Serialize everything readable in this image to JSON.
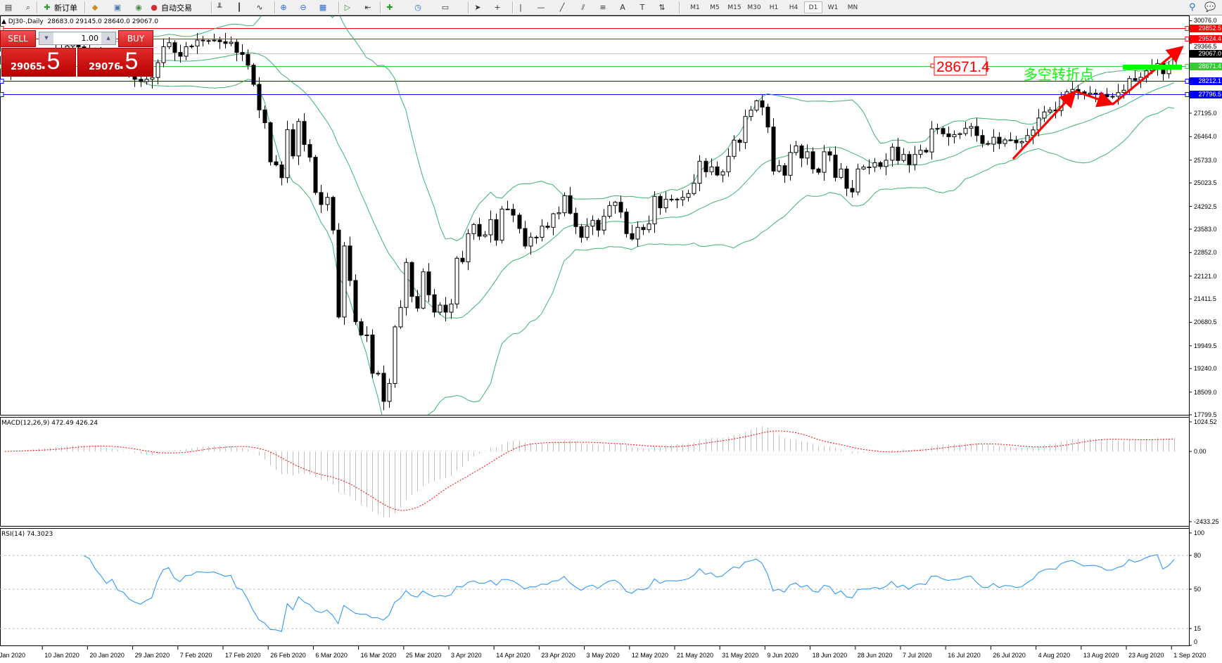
{
  "toolbar": {
    "items": [
      {
        "icon": "chart-window-icon",
        "label": ""
      },
      {
        "icon": "zoom-chart-icon",
        "label": ""
      },
      {
        "icon": "new-order-icon",
        "label": "新订单"
      },
      {
        "icon": "metaeditor-icon",
        "label": ""
      },
      {
        "icon": "market-watch-icon",
        "label": ""
      },
      {
        "icon": "signals-icon",
        "label": ""
      },
      {
        "icon": "auto-trading-icon",
        "label": "自动交易"
      },
      {
        "icon": "bar-chart-icon",
        "label": ""
      },
      {
        "icon": "candlestick-icon",
        "label": ""
      },
      {
        "icon": "line-chart-icon",
        "label": ""
      },
      {
        "icon": "zoom-in-icon",
        "label": ""
      },
      {
        "icon": "zoom-out-icon",
        "label": ""
      },
      {
        "icon": "tile-windows-icon",
        "label": ""
      },
      {
        "icon": "auto-scroll-icon",
        "label": ""
      },
      {
        "icon": "chart-shift-icon",
        "label": ""
      },
      {
        "icon": "indicators-icon",
        "label": ""
      },
      {
        "icon": "periods-icon",
        "label": ""
      },
      {
        "icon": "templates-icon",
        "label": ""
      },
      {
        "icon": "cursor-icon",
        "label": ""
      },
      {
        "icon": "crosshair-icon",
        "label": ""
      },
      {
        "icon": "vertical-line-icon",
        "label": ""
      },
      {
        "icon": "horizontal-line-icon",
        "label": ""
      },
      {
        "icon": "trendline-icon",
        "label": ""
      },
      {
        "icon": "equidistant-channel-icon",
        "label": ""
      },
      {
        "icon": "fibonacci-icon",
        "label": ""
      },
      {
        "icon": "text-icon",
        "label": ""
      },
      {
        "icon": "text-label-icon",
        "label": ""
      },
      {
        "icon": "arrows-icon",
        "label": ""
      }
    ],
    "timeframes": [
      "M1",
      "M5",
      "M15",
      "M30",
      "H1",
      "H4",
      "D1",
      "W1",
      "MN"
    ],
    "active_timeframe": "D1",
    "right_icons": [
      "search-icon",
      "chat-icon"
    ]
  },
  "chart": {
    "symbol": "DJ30-,Daily",
    "ohlc": [
      "28683.0",
      "29145.0",
      "28640.0",
      "29067.0"
    ],
    "closes": [
      28450,
      28620,
      28560,
      28700,
      28830,
      28790,
      28900,
      28950,
      29020,
      29150,
      29210,
      29290,
      29340,
      29260,
      29190,
      29150,
      29000,
      28890,
      28740,
      28850,
      28600,
      28550,
      28350,
      28250,
      28180,
      28252,
      28308,
      28770,
      29264,
      29391,
      29088,
      28969,
      29264,
      29288,
      29471,
      29455,
      29450,
      29471,
      29423,
      29367,
      29407,
      29088,
      29025,
      28690,
      28093,
      27297,
      26898,
      25680,
      25584,
      25186,
      26683,
      25863,
      26938,
      26221,
      25823,
      24724,
      24350,
      24573,
      23554,
      20846,
      23060,
      21984,
      20702,
      20288,
      20288,
      19094,
      19094,
      18217,
      18775,
      20538,
      21144,
      22545,
      21487,
      21122,
      22253,
      21538,
      20997,
      21216,
      20997,
      21253,
      22677,
      22567,
      23443,
      23728,
      23363,
      23407,
      23881,
      23238,
      24209,
      24202,
      24020,
      23603,
      23056,
      23333,
      23330,
      23677,
      23640,
      24063,
      24093,
      24626,
      24078,
      23662,
      23326,
      23677,
      23859,
      23553,
      23983,
      24319,
      24421,
      24114,
      23443,
      23275,
      23640,
      23567,
      23750,
      24604,
      24246,
      24516,
      24516,
      24500,
      24574,
      24691,
      25012,
      25699,
      25370,
      25523,
      25268,
      25370,
      25852,
      26356,
      26283,
      27093,
      27290,
      27582,
      27385,
      26764,
      25392,
      25560,
      25261,
      25972,
      26176,
      25798,
      25994,
      25458,
      25353,
      25994,
      25889,
      25194,
      25458,
      24854,
      24741,
      25458,
      25519,
      25515,
      25655,
      25534,
      25730,
      26138,
      25723,
      25911,
      25594,
      25911,
      26040,
      25987,
      26704,
      26720,
      26553,
      26462,
      26530,
      26560,
      26727,
      26780,
      26500,
      26251,
      26230,
      26447,
      26251,
      26364,
      26350,
      26274,
      26310,
      26500,
      26674,
      27044,
      27233,
      27293,
      27280,
      27686,
      27859,
      27935,
      27860,
      27784,
      27820,
      27820,
      27784,
      27708,
      27720,
      27837,
      27912,
      28275,
      28222,
      28312,
      28516,
      28652,
      28743,
      28425,
      28614,
      29067
    ],
    "price_axis": [
      "30076.0",
      "29366.5",
      "27195.0",
      "26464.0",
      "25733.0",
      "25023.5",
      "24292.5",
      "23583.0",
      "22852.0",
      "22121.0",
      "21411.5",
      "20680.5",
      "19949.5",
      "19240.0",
      "18509.0",
      "17799.5"
    ],
    "levels": [
      {
        "price": "29852.5",
        "color": "#ff0000",
        "text_color": "#ffffff"
      },
      {
        "price": "29524.4",
        "color": "#ff0000",
        "text_color": "#ffffff"
      },
      {
        "price": "29067.0",
        "color": "#c0c0c0",
        "label_bg": "#000000",
        "text_color": "#ffffff"
      },
      {
        "price": "28671.4",
        "color": "#32cd32",
        "label_bg": "#32cd32",
        "text_color": "#ffffff"
      },
      {
        "price": "28212.1",
        "color": "#0000ff",
        "text_color": "#ffffff"
      },
      {
        "price": "27796.5",
        "color": "#0000ff",
        "text_color": "#ffffff"
      }
    ],
    "annotation_price_label": "28671.4",
    "annotation_text": "多空转折点",
    "annotation_text_color": "#00ff00",
    "arrow_color": "#ff0000",
    "bollinger_color": "#3cb371",
    "dates": [
      "Jan 2020",
      "10 Jan 2020",
      "20 Jan 2020",
      "29 Jan 2020",
      "7 Feb 2020",
      "17 Feb 2020",
      "26 Feb 2020",
      "6 Mar 2020",
      "16 Mar 2020",
      "25 Mar 2020",
      "3 Apr 2020",
      "14 Apr 2020",
      "23 Apr 2020",
      "3 May 2020",
      "12 May 2020",
      "21 May 2020",
      "31 May 2020",
      "9 Jun 2020",
      "18 Jun 2020",
      "28 Jun 2020",
      "7 Jul 2020",
      "16 Jul 2020",
      "26 Jul 2020",
      "4 Aug 2020",
      "13 Aug 2020",
      "23 Aug 2020",
      "1 Sep 2020"
    ]
  },
  "trade_panel": {
    "sell_label": "SELL",
    "buy_label": "BUY",
    "lot": "1.00",
    "sell_price_main": "29065",
    "sell_price_frac": ".5",
    "buy_price_main": "29076",
    "buy_price_frac": ".5"
  },
  "macd": {
    "label": "MACD(12,26,9) 472.49 426.24",
    "axis": [
      "1024.52",
      "0.00",
      "-2433.25"
    ],
    "histogram_color": "#c0c0c0",
    "signal_color": "#ff0000"
  },
  "rsi": {
    "label": "RSI(14) 74.3023",
    "axis": [
      "100",
      "80",
      "50",
      "15",
      "0"
    ],
    "line_color": "#1e90ff"
  }
}
